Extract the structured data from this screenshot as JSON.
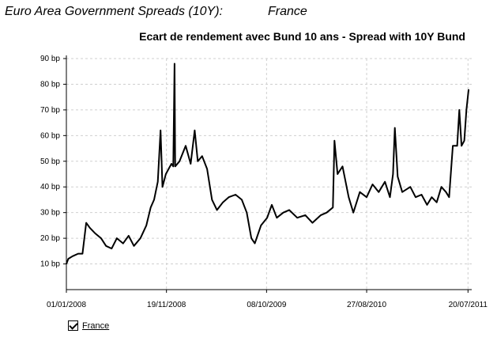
{
  "header": {
    "title": "Euro Area Government Spreads (10Y):",
    "country": "France"
  },
  "chart_data": {
    "type": "line",
    "title": "Ecart de rendement avec Bund 10 ans - Spread with 10Y Bund",
    "xlabel": "",
    "ylabel": "",
    "x_ticks": [
      "01/01/2008",
      "19/11/2008",
      "08/10/2009",
      "27/08/2010",
      "20/07/2011"
    ],
    "y_ticks": [
      "10 bp",
      "20 bp",
      "30 bp",
      "40 bp",
      "50 bp",
      "60 bp",
      "70 bp",
      "80 bp",
      "90 bp"
    ],
    "ylim": [
      0,
      90
    ],
    "xlim": [
      "01/01/2008",
      "01/08/2011"
    ],
    "grid": true,
    "legend_position": "bottom-left",
    "series": [
      {
        "name": "France",
        "color": "#000000",
        "points": [
          [
            "01/01/2008",
            10
          ],
          [
            "07/01/2008",
            12
          ],
          [
            "21/01/2008",
            13
          ],
          [
            "08/02/2008",
            14
          ],
          [
            "22/02/2008",
            14
          ],
          [
            "05/03/2008",
            26
          ],
          [
            "17/03/2008",
            24
          ],
          [
            "02/04/2008",
            22
          ],
          [
            "22/04/2008",
            20
          ],
          [
            "08/05/2008",
            17
          ],
          [
            "26/05/2008",
            16
          ],
          [
            "12/06/2008",
            20
          ],
          [
            "02/07/2008",
            18
          ],
          [
            "20/07/2008",
            21
          ],
          [
            "06/08/2008",
            17
          ],
          [
            "27/08/2008",
            20
          ],
          [
            "15/09/2008",
            25
          ],
          [
            "29/09/2008",
            32
          ],
          [
            "10/10/2008",
            35
          ],
          [
            "22/10/2008",
            42
          ],
          [
            "31/10/2008",
            62
          ],
          [
            "06/11/2008",
            40
          ],
          [
            "17/11/2008",
            45
          ],
          [
            "26/11/2008",
            47
          ],
          [
            "05/12/2008",
            49
          ],
          [
            "11/12/2008",
            48
          ],
          [
            "15/12/2008",
            88
          ],
          [
            "17/12/2008",
            48
          ],
          [
            "31/12/2008",
            50
          ],
          [
            "20/01/2009",
            56
          ],
          [
            "05/02/2009",
            49
          ],
          [
            "18/02/2009",
            62
          ],
          [
            "28/02/2009",
            50
          ],
          [
            "14/03/2009",
            52
          ],
          [
            "30/03/2009",
            47
          ],
          [
            "15/04/2009",
            35
          ],
          [
            "01/05/2009",
            31
          ],
          [
            "20/05/2009",
            34
          ],
          [
            "08/06/2009",
            36
          ],
          [
            "30/06/2009",
            37
          ],
          [
            "20/07/2009",
            35
          ],
          [
            "05/08/2009",
            30
          ],
          [
            "20/08/2009",
            20
          ],
          [
            "31/08/2009",
            18
          ],
          [
            "20/09/2009",
            25
          ],
          [
            "10/10/2009",
            28
          ],
          [
            "25/10/2009",
            33
          ],
          [
            "10/11/2009",
            28
          ],
          [
            "01/12/2009",
            30
          ],
          [
            "20/12/2009",
            31
          ],
          [
            "15/01/2010",
            28
          ],
          [
            "10/02/2010",
            29
          ],
          [
            "05/03/2010",
            26
          ],
          [
            "01/04/2010",
            29
          ],
          [
            "20/04/2010",
            30
          ],
          [
            "10/05/2010",
            32
          ],
          [
            "15/05/2010",
            58
          ],
          [
            "25/05/2010",
            45
          ],
          [
            "10/06/2010",
            48
          ],
          [
            "30/06/2010",
            36
          ],
          [
            "15/07/2010",
            30
          ],
          [
            "05/08/2010",
            38
          ],
          [
            "27/08/2010",
            36
          ],
          [
            "15/09/2010",
            41
          ],
          [
            "05/10/2010",
            38
          ],
          [
            "25/10/2010",
            42
          ],
          [
            "10/11/2010",
            36
          ],
          [
            "20/11/2010",
            45
          ],
          [
            "26/11/2010",
            63
          ],
          [
            "05/12/2010",
            44
          ],
          [
            "20/12/2010",
            38
          ],
          [
            "15/01/2011",
            40
          ],
          [
            "01/02/2011",
            36
          ],
          [
            "20/02/2011",
            37
          ],
          [
            "10/03/2011",
            33
          ],
          [
            "25/03/2011",
            36
          ],
          [
            "10/04/2011",
            34
          ],
          [
            "25/04/2011",
            40
          ],
          [
            "10/05/2011",
            38
          ],
          [
            "20/05/2011",
            36
          ],
          [
            "01/06/2011",
            56
          ],
          [
            "15/06/2011",
            56
          ],
          [
            "22/06/2011",
            70
          ],
          [
            "29/06/2011",
            56
          ],
          [
            "08/07/2011",
            58
          ],
          [
            "15/07/2011",
            70
          ],
          [
            "22/07/2011",
            78
          ]
        ]
      }
    ]
  },
  "legend": {
    "items": [
      {
        "label": "France",
        "checked": true
      }
    ]
  }
}
